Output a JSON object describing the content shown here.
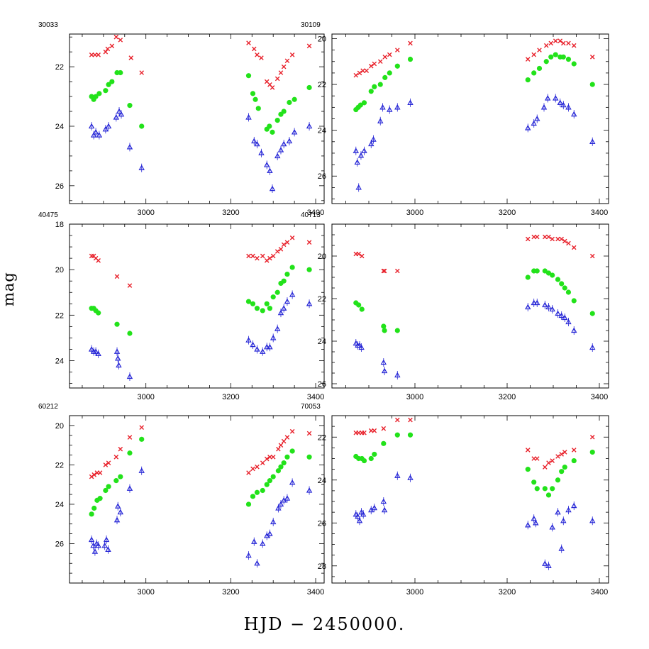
{
  "chart_data": {
    "type": "scatter",
    "xlabel": "HJD − 2450000.",
    "ylabel": "mag",
    "x_ticks": [
      3000,
      3200,
      3400
    ],
    "series_styles": [
      {
        "name": "red",
        "color": "#e8202a",
        "marker": "x"
      },
      {
        "name": "green",
        "color": "#22e21a",
        "marker": "circle"
      },
      {
        "name": "blue",
        "color": "#2626d6",
        "marker": "triangle"
      }
    ],
    "panels": [
      {
        "title": "30033",
        "xlim": [
          2820,
          3420
        ],
        "ylim": [
          20.9,
          26.6
        ],
        "yticks": [
          22,
          24,
          26
        ],
        "series": [
          {
            "name": "red",
            "x": [
              2872,
              2880,
              2888,
              2905,
              2910,
              2920,
              2930,
              2940,
              2965,
              2990,
              3242,
              3255,
              3262,
              3272,
              3285,
              3292,
              3298,
              3310,
              3318,
              3325,
              3333,
              3345,
              3385
            ],
            "y": [
              21.6,
              21.6,
              21.6,
              21.5,
              21.4,
              21.3,
              21.0,
              21.1,
              21.7,
              22.2,
              21.2,
              21.4,
              21.6,
              21.7,
              22.5,
              22.6,
              22.7,
              22.4,
              22.2,
              22.0,
              21.8,
              21.6,
              21.3
            ]
          },
          {
            "name": "green",
            "x": [
              2872,
              2877,
              2882,
              2890,
              2905,
              2912,
              2920,
              2932,
              2940,
              2962,
              2990,
              3242,
              3252,
              3258,
              3265,
              3285,
              3291,
              3298,
              3310,
              3318,
              3325,
              3338,
              3350,
              3385
            ],
            "y": [
              23.0,
              23.1,
              23.0,
              22.9,
              22.8,
              22.6,
              22.5,
              22.2,
              22.2,
              23.3,
              24.0,
              22.3,
              22.9,
              23.1,
              23.4,
              24.1,
              24.0,
              24.2,
              23.8,
              23.6,
              23.5,
              23.2,
              23.1,
              22.7
            ]
          },
          {
            "name": "blue",
            "x": [
              2872,
              2877,
              2882,
              2890,
              2905,
              2912,
              2930,
              2937,
              2942,
              2962,
              2990,
              3242,
              3255,
              3262,
              3272,
              3285,
              3292,
              3298,
              3310,
              3318,
              3325,
              3338,
              3350,
              3385
            ],
            "y": [
              24.0,
              24.3,
              24.2,
              24.3,
              24.1,
              24.0,
              23.7,
              23.5,
              23.6,
              24.7,
              25.4,
              23.7,
              24.5,
              24.6,
              24.9,
              25.3,
              25.5,
              26.1,
              25.0,
              24.8,
              24.6,
              24.5,
              24.2,
              24.0
            ]
          }
        ]
      },
      {
        "title": "30109",
        "xlim": [
          2820,
          3420
        ],
        "ylim": [
          19.8,
          27.2
        ],
        "yticks": [
          20,
          22,
          24,
          26
        ],
        "series": [
          {
            "name": "red",
            "x": [
              2872,
              2880,
              2887,
              2895,
              2905,
              2912,
              2925,
              2935,
              2945,
              2962,
              2990,
              3245,
              3258,
              3270,
              3285,
              3295,
              3305,
              3315,
              3322,
              3333,
              3345,
              3385
            ],
            "y": [
              21.6,
              21.5,
              21.4,
              21.4,
              21.2,
              21.1,
              21.0,
              20.8,
              20.7,
              20.5,
              20.2,
              20.9,
              20.7,
              20.5,
              20.3,
              20.2,
              20.1,
              20.1,
              20.2,
              20.2,
              20.3,
              20.8
            ]
          },
          {
            "name": "green",
            "x": [
              2872,
              2877,
              2882,
              2890,
              2905,
              2912,
              2925,
              2935,
              2945,
              2962,
              2990,
              3245,
              3258,
              3270,
              3285,
              3295,
              3305,
              3315,
              3322,
              3333,
              3345,
              3385
            ],
            "y": [
              23.1,
              23.0,
              22.9,
              22.8,
              22.3,
              22.1,
              22.0,
              21.7,
              21.5,
              21.2,
              20.9,
              21.8,
              21.5,
              21.3,
              21.0,
              20.8,
              20.7,
              20.8,
              20.8,
              20.9,
              21.1,
              22.0
            ]
          },
          {
            "name": "blue",
            "x": [
              2872,
              2875,
              2878,
              2883,
              2890,
              2905,
              2910,
              2925,
              2930,
              2945,
              2962,
              2990,
              3245,
              3258,
              3265,
              3280,
              3288,
              3305,
              3315,
              3322,
              3333,
              3345,
              3385
            ],
            "y": [
              24.9,
              25.4,
              26.5,
              25.1,
              24.9,
              24.6,
              24.4,
              23.6,
              23.0,
              23.1,
              23.0,
              22.8,
              23.9,
              23.7,
              23.5,
              23.0,
              22.6,
              22.6,
              22.8,
              22.9,
              23.0,
              23.3,
              24.5
            ]
          }
        ]
      },
      {
        "title": "40475",
        "xlim": [
          2820,
          3420
        ],
        "ylim": [
          18.0,
          25.2
        ],
        "yticks": [
          18,
          20,
          22,
          24
        ],
        "series": [
          {
            "name": "red",
            "x": [
              2872,
              2877,
              2882,
              2888,
              2932,
              2962,
              3242,
              3252,
              3262,
              3275,
              3285,
              3292,
              3300,
              3310,
              3318,
              3325,
              3333,
              3345,
              3385
            ],
            "y": [
              19.4,
              19.4,
              19.5,
              19.6,
              20.3,
              20.7,
              19.4,
              19.4,
              19.5,
              19.4,
              19.6,
              19.5,
              19.4,
              19.2,
              19.1,
              18.9,
              18.8,
              18.6,
              18.8
            ]
          },
          {
            "name": "green",
            "x": [
              2872,
              2877,
              2882,
              2888,
              2932,
              2962,
              3242,
              3252,
              3262,
              3275,
              3285,
              3292,
              3300,
              3310,
              3318,
              3325,
              3333,
              3345,
              3385
            ],
            "y": [
              21.7,
              21.7,
              21.8,
              21.9,
              22.4,
              22.8,
              21.4,
              21.5,
              21.7,
              21.8,
              21.5,
              21.7,
              21.2,
              21.0,
              20.6,
              20.5,
              20.2,
              19.9,
              20.0
            ]
          },
          {
            "name": "blue",
            "x": [
              2872,
              2877,
              2882,
              2888,
              2932,
              2934,
              2936,
              2962,
              3242,
              3252,
              3262,
              3275,
              3285,
              3292,
              3300,
              3310,
              3318,
              3325,
              3333,
              3345,
              3385
            ],
            "y": [
              23.5,
              23.6,
              23.6,
              23.7,
              23.6,
              23.9,
              24.2,
              24.7,
              23.1,
              23.3,
              23.5,
              23.6,
              23.4,
              23.4,
              23.0,
              22.6,
              21.9,
              21.7,
              21.4,
              21.1,
              21.5
            ]
          }
        ]
      },
      {
        "title": "40713",
        "xlim": [
          2820,
          3420
        ],
        "ylim": [
          18.5,
          26.2
        ],
        "yticks": [
          20,
          22,
          24,
          26
        ],
        "series": [
          {
            "name": "red",
            "x": [
              2872,
              2878,
              2885,
              2932,
              2934,
              2962,
              3245,
              3258,
              3265,
              3282,
              3290,
              3298,
              3310,
              3318,
              3325,
              3333,
              3345,
              3385
            ],
            "y": [
              19.9,
              19.9,
              20.0,
              20.7,
              20.7,
              20.7,
              19.2,
              19.1,
              19.1,
              19.1,
              19.1,
              19.2,
              19.2,
              19.2,
              19.3,
              19.4,
              19.6,
              20.0
            ]
          },
          {
            "name": "green",
            "x": [
              2872,
              2878,
              2885,
              2932,
              2934,
              2962,
              3245,
              3258,
              3265,
              3282,
              3290,
              3298,
              3310,
              3318,
              3325,
              3333,
              3345,
              3385
            ],
            "y": [
              22.2,
              22.3,
              22.5,
              23.3,
              23.5,
              23.5,
              21.0,
              20.7,
              20.7,
              20.7,
              20.8,
              20.9,
              21.1,
              21.3,
              21.5,
              21.7,
              22.1,
              22.7
            ]
          },
          {
            "name": "blue",
            "x": [
              2872,
              2876,
              2880,
              2884,
              2932,
              2934,
              2962,
              3245,
              3258,
              3265,
              3282,
              3290,
              3298,
              3310,
              3318,
              3325,
              3333,
              3345,
              3385
            ],
            "y": [
              24.1,
              24.2,
              24.2,
              24.3,
              25.0,
              25.4,
              25.6,
              22.4,
              22.2,
              22.2,
              22.3,
              22.4,
              22.5,
              22.7,
              22.8,
              22.9,
              23.1,
              23.5,
              24.3
            ]
          }
        ]
      },
      {
        "title": "60212",
        "xlim": [
          2820,
          3420
        ],
        "ylim": [
          19.5,
          28.0
        ],
        "yticks": [
          20,
          22,
          24,
          26
        ],
        "series": [
          {
            "name": "red",
            "x": [
              2872,
              2878,
              2885,
              2892,
              2905,
              2912,
              2930,
              2940,
              2962,
              2990,
              3242,
              3252,
              3262,
              3275,
              3285,
              3292,
              3300,
              3312,
              3318,
              3325,
              3333,
              3345,
              3385
            ],
            "y": [
              22.6,
              22.5,
              22.4,
              22.4,
              22.0,
              21.9,
              21.6,
              21.2,
              20.6,
              20.1,
              22.4,
              22.2,
              22.1,
              21.9,
              21.7,
              21.6,
              21.6,
              21.2,
              21.0,
              20.8,
              20.6,
              20.3,
              20.4
            ]
          },
          {
            "name": "green",
            "x": [
              2872,
              2878,
              2885,
              2892,
              2905,
              2912,
              2930,
              2940,
              2962,
              2990,
              3242,
              3252,
              3262,
              3275,
              3285,
              3292,
              3300,
              3312,
              3318,
              3325,
              3333,
              3345,
              3385
            ],
            "y": [
              24.5,
              24.2,
              23.8,
              23.7,
              23.3,
              23.1,
              22.8,
              22.6,
              21.4,
              20.7,
              24.0,
              23.6,
              23.4,
              23.3,
              23.0,
              22.8,
              22.6,
              22.3,
              22.1,
              21.9,
              21.6,
              21.3,
              21.6
            ]
          },
          {
            "name": "blue",
            "x": [
              2872,
              2876,
              2880,
              2884,
              2888,
              2903,
              2907,
              2911,
              2932,
              2934,
              2940,
              2962,
              2990,
              3242,
              3255,
              3262,
              3275,
              3285,
              3292,
              3300,
              3312,
              3318,
              3325,
              3333,
              3345,
              3385
            ],
            "y": [
              25.8,
              26.1,
              26.4,
              26.0,
              26.1,
              26.1,
              25.8,
              26.3,
              24.8,
              24.1,
              24.4,
              23.2,
              22.3,
              26.6,
              25.9,
              27.0,
              26.0,
              25.6,
              25.5,
              24.9,
              24.2,
              24.0,
              23.8,
              23.7,
              22.9,
              23.3
            ]
          }
        ]
      },
      {
        "title": "70053",
        "xlim": [
          2820,
          3420
        ],
        "ylim": [
          21.0,
          28.8
        ],
        "yticks": [
          22,
          24,
          26,
          28
        ],
        "series": [
          {
            "name": "red",
            "x": [
              2872,
              2878,
              2885,
              2890,
              2905,
              2912,
              2932,
              2962,
              2990,
              3245,
              3258,
              3265,
              3282,
              3290,
              3298,
              3310,
              3318,
              3325,
              3345,
              3385
            ],
            "y": [
              21.8,
              21.8,
              21.8,
              21.8,
              21.7,
              21.7,
              21.6,
              21.2,
              21.2,
              22.6,
              23.0,
              23.0,
              23.4,
              23.2,
              23.1,
              22.9,
              22.8,
              22.7,
              22.6,
              22.0
            ]
          },
          {
            "name": "green",
            "x": [
              2872,
              2878,
              2885,
              2890,
              2905,
              2912,
              2932,
              2962,
              2990,
              3245,
              3258,
              3265,
              3282,
              3290,
              3298,
              3310,
              3318,
              3325,
              3345,
              3385
            ],
            "y": [
              22.9,
              23.0,
              23.0,
              23.1,
              23.0,
              22.8,
              22.3,
              21.9,
              21.9,
              23.5,
              24.1,
              24.4,
              24.4,
              24.7,
              24.4,
              24.0,
              23.6,
              23.4,
              23.1,
              22.7
            ]
          },
          {
            "name": "blue",
            "x": [
              2872,
              2876,
              2880,
              2884,
              2888,
              2905,
              2912,
              2932,
              2934,
              2962,
              2990,
              3245,
              3258,
              3262,
              3282,
              3290,
              3298,
              3310,
              3318,
              3322,
              3333,
              3345,
              3385
            ],
            "y": [
              25.6,
              25.7,
              25.9,
              25.5,
              25.6,
              25.4,
              25.3,
              25.0,
              25.4,
              23.8,
              23.9,
              26.1,
              25.8,
              26.0,
              27.9,
              28.0,
              26.2,
              25.5,
              27.2,
              25.9,
              25.4,
              25.2,
              25.9
            ]
          }
        ]
      }
    ]
  }
}
